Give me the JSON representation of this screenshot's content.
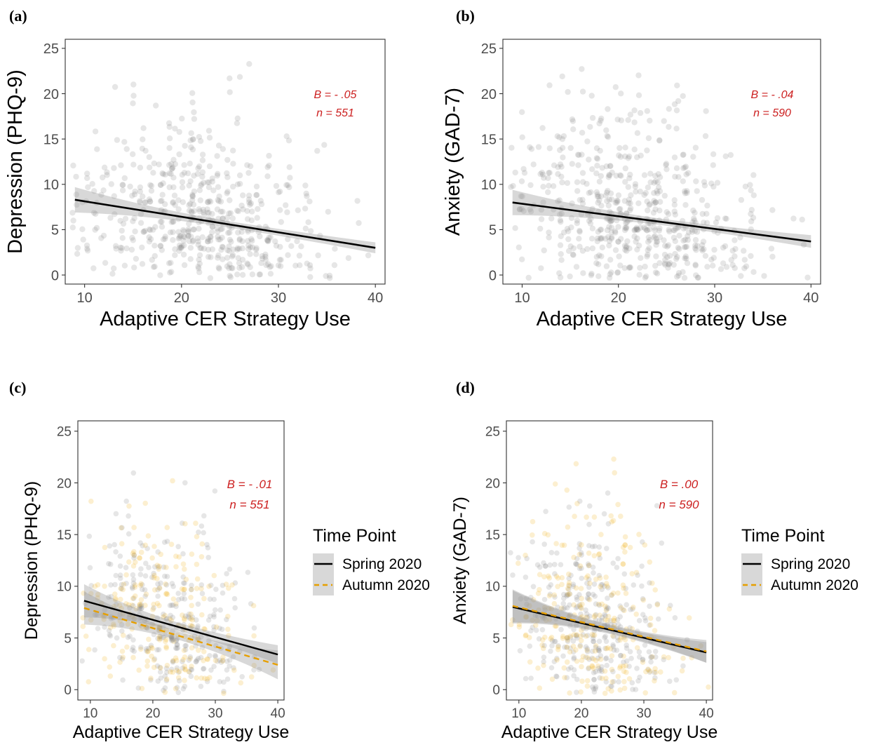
{
  "chart_data": [
    {
      "panel": "(a)",
      "type": "scatter",
      "xlabel": "Adaptive CER Strategy Use",
      "ylabel": "Depression (PHQ-9)",
      "xlim": [
        8,
        41
      ],
      "ylim": [
        -1,
        26
      ],
      "xticks": [
        10,
        20,
        30,
        40
      ],
      "yticks": [
        0,
        5,
        10,
        15,
        20,
        25
      ],
      "annotation": [
        "B = -  .05",
        "n = 551"
      ],
      "n_points": 551,
      "point_color": "#808080",
      "series": [
        {
          "color": "#000000",
          "dashed": false,
          "x": [
            9,
            40
          ],
          "y": [
            8.3,
            3.0
          ],
          "ci_width": [
            0.7,
            0.35,
            0.6
          ]
        }
      ],
      "grid": false,
      "legend": null
    },
    {
      "panel": "(b)",
      "type": "scatter",
      "xlabel": "Adaptive CER Strategy Use",
      "ylabel": "Anxiety (GAD-7)",
      "xlim": [
        8,
        41
      ],
      "ylim": [
        -1,
        26
      ],
      "xticks": [
        10,
        20,
        30,
        40
      ],
      "yticks": [
        0,
        5,
        10,
        15,
        20,
        25
      ],
      "annotation": [
        "B = -  .04",
        "n = 590"
      ],
      "n_points": 590,
      "point_color": "#808080",
      "series": [
        {
          "color": "#000000",
          "dashed": false,
          "x": [
            9,
            40
          ],
          "y": [
            8.0,
            3.7
          ],
          "ci_width": [
            0.7,
            0.35,
            0.7
          ]
        }
      ],
      "grid": false,
      "legend": null
    },
    {
      "panel": "(c)",
      "type": "scatter",
      "xlabel": "Adaptive CER Strategy Use",
      "ylabel": "Depression (PHQ-9)",
      "xlim": [
        8,
        41
      ],
      "ylim": [
        -1,
        26
      ],
      "xticks": [
        10,
        20,
        30,
        40
      ],
      "yticks": [
        0,
        5,
        10,
        15,
        20,
        25
      ],
      "annotation": [
        "B = -  .01",
        "n = 551"
      ],
      "n_points": 551,
      "point_color": "#808080",
      "point_color_2": "#f0b42a",
      "series": [
        {
          "name": "Spring 2020",
          "color": "#000000",
          "dashed": false,
          "x": [
            9,
            40
          ],
          "y": [
            8.6,
            3.4
          ],
          "ci_width": [
            0.8,
            0.4,
            0.9
          ]
        },
        {
          "name": "Autumn 2020",
          "color": "#e69f00",
          "dashed": true,
          "x": [
            9,
            40
          ],
          "y": [
            7.9,
            2.4
          ],
          "ci_width": [
            0.8,
            0.4,
            1.4
          ]
        }
      ],
      "grid": false,
      "legend": {
        "title": "Time Point",
        "position": "right",
        "items": [
          "Spring 2020",
          "Autumn 2020"
        ]
      }
    },
    {
      "panel": "(d)",
      "type": "scatter",
      "xlabel": "Adaptive CER Strategy Use",
      "ylabel": "Anxiety (GAD-7)",
      "xlim": [
        8,
        41
      ],
      "ylim": [
        -1,
        26
      ],
      "xticks": [
        10,
        20,
        30,
        40
      ],
      "yticks": [
        0,
        5,
        10,
        15,
        20,
        25
      ],
      "annotation": [
        "B =   .00",
        "n = 590"
      ],
      "n_points": 590,
      "point_color": "#808080",
      "point_color_2": "#f0b42a",
      "series": [
        {
          "name": "Spring 2020",
          "color": "#000000",
          "dashed": false,
          "x": [
            9,
            40
          ],
          "y": [
            8.0,
            3.6
          ],
          "ci_width": [
            0.8,
            0.4,
            1.0
          ]
        },
        {
          "name": "Autumn 2020",
          "color": "#e69f00",
          "dashed": true,
          "x": [
            9,
            40
          ],
          "y": [
            8.1,
            3.7
          ],
          "ci_width": [
            0.8,
            0.4,
            1.1
          ]
        }
      ],
      "grid": false,
      "legend": {
        "title": "Time Point",
        "position": "right",
        "items": [
          "Spring 2020",
          "Autumn 2020"
        ]
      }
    }
  ]
}
